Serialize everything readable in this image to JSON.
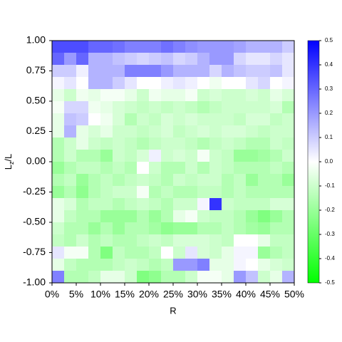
{
  "chart_data": {
    "type": "heatmap",
    "xlabel": "R",
    "ylabel": {
      "main": "L",
      "sub": "z",
      "rest": "/L"
    },
    "xlim": [
      0,
      50
    ],
    "ylim": [
      -1,
      1
    ],
    "xticks": [
      {
        "value": 0,
        "label": "0%"
      },
      {
        "value": 5,
        "label": "5%"
      },
      {
        "value": 10,
        "label": "10%"
      },
      {
        "value": 15,
        "label": "15%"
      },
      {
        "value": 20,
        "label": "20%"
      },
      {
        "value": 25,
        "label": "25%"
      },
      {
        "value": 30,
        "label": "30%"
      },
      {
        "value": 35,
        "label": "35%"
      },
      {
        "value": 40,
        "label": "40%"
      },
      {
        "value": 45,
        "label": "45%"
      },
      {
        "value": 50,
        "label": "50%"
      }
    ],
    "yticks": [
      {
        "value": 1,
        "label": "1.00"
      },
      {
        "value": 0.75,
        "label": "0.75"
      },
      {
        "value": 0.5,
        "label": "0.50"
      },
      {
        "value": 0.25,
        "label": "0.25"
      },
      {
        "value": 0,
        "label": "0.00"
      },
      {
        "value": -0.25,
        "label": "-0.25"
      },
      {
        "value": -0.5,
        "label": "-0.50"
      },
      {
        "value": -0.75,
        "label": "-0.75"
      },
      {
        "value": -1,
        "label": "-1.00"
      }
    ],
    "clim": [
      -0.5,
      0.5
    ],
    "cticks": [
      0.5,
      0.4,
      0.3,
      0.2,
      0.1,
      {
        "value": 0,
        "label": "0.0"
      },
      -0.1,
      -0.2,
      -0.3,
      -0.4,
      -0.5
    ],
    "colors": {
      "low": "#00ff00",
      "mid": "#ffffff",
      "high": "#0000ff"
    },
    "z": [
      [
        0.35,
        0.35,
        0.35,
        0.3,
        0.3,
        0.28,
        0.25,
        0.25,
        0.25,
        0.28,
        0.25,
        0.22,
        0.2,
        0.2,
        0.2,
        0.18,
        0.15,
        0.15,
        0.15,
        0.1
      ],
      [
        0.3,
        0.2,
        0.3,
        0.15,
        0.15,
        0.12,
        0.1,
        0.08,
        0.1,
        0.12,
        0.08,
        0.1,
        0.15,
        0.2,
        0.2,
        0.08,
        0.05,
        0.05,
        0.08,
        0.05
      ],
      [
        0.1,
        0.1,
        0.03,
        0.15,
        0.15,
        0.15,
        0.25,
        0.25,
        0.25,
        0.2,
        0.15,
        0.15,
        0.15,
        0.08,
        0.15,
        0.12,
        0.1,
        0.1,
        0.12,
        0.05
      ],
      [
        0.02,
        0.05,
        0,
        0.15,
        0.15,
        0.1,
        0.05,
        0,
        0,
        0.03,
        0.05,
        0.03,
        0,
        -0.03,
        0,
        0,
        0.05,
        0.08,
        0,
        0.02
      ],
      [
        -0.05,
        -0.1,
        -0.03,
        -0.05,
        -0.02,
        -0.02,
        -0.05,
        -0.1,
        -0.03,
        -0.05,
        -0.05,
        -0.02,
        -0.1,
        -0.08,
        -0.1,
        -0.1,
        -0.08,
        -0.1,
        -0.05,
        -0.08
      ],
      [
        -0.02,
        0.08,
        0.08,
        -0.03,
        -0.05,
        -0.08,
        -0.1,
        -0.12,
        -0.1,
        -0.12,
        -0.1,
        -0.12,
        -0.15,
        -0.12,
        -0.1,
        -0.1,
        -0.1,
        -0.1,
        -0.08,
        -0.15
      ],
      [
        -0.05,
        0.12,
        0.1,
        0,
        -0.03,
        -0.08,
        -0.15,
        -0.1,
        -0.12,
        -0.08,
        -0.1,
        -0.08,
        -0.1,
        -0.1,
        -0.1,
        -0.12,
        -0.08,
        -0.08,
        -0.12,
        -0.1
      ],
      [
        -0.05,
        0.15,
        -0.05,
        -0.08,
        -0.05,
        -0.1,
        -0.1,
        -0.12,
        -0.1,
        -0.08,
        -0.12,
        -0.1,
        -0.08,
        -0.1,
        -0.08,
        -0.08,
        -0.1,
        -0.12,
        -0.1,
        -0.1
      ],
      [
        -0.15,
        -0.1,
        -0.05,
        -0.1,
        -0.12,
        -0.1,
        -0.12,
        -0.15,
        -0.12,
        -0.1,
        -0.1,
        -0.12,
        -0.15,
        -0.12,
        -0.1,
        -0.12,
        -0.15,
        -0.15,
        -0.1,
        -0.12
      ],
      [
        -0.15,
        -0.1,
        -0.15,
        -0.15,
        -0.2,
        -0.1,
        -0.12,
        -0.08,
        0.03,
        -0.1,
        -0.08,
        -0.1,
        -0.02,
        -0.1,
        -0.12,
        -0.2,
        -0.2,
        -0.18,
        -0.15,
        -0.1
      ],
      [
        -0.2,
        -0.15,
        -0.12,
        -0.12,
        -0.15,
        -0.12,
        -0.15,
        0,
        -0.1,
        -0.15,
        -0.15,
        -0.1,
        -0.15,
        -0.1,
        -0.12,
        -0.15,
        -0.15,
        -0.15,
        -0.12,
        -0.15
      ],
      [
        -0.15,
        -0.12,
        -0.2,
        -0.15,
        -0.12,
        -0.15,
        -0.12,
        -0.1,
        -0.12,
        -0.15,
        -0.1,
        -0.12,
        -0.1,
        -0.1,
        -0.15,
        -0.12,
        -0.2,
        -0.15,
        -0.15,
        -0.2
      ],
      [
        -0.2,
        -0.15,
        -0.22,
        -0.15,
        -0.12,
        -0.1,
        -0.1,
        -0.02,
        -0.15,
        -0.12,
        -0.15,
        -0.15,
        -0.12,
        -0.12,
        -0.15,
        -0.12,
        -0.15,
        -0.15,
        -0.15,
        -0.15
      ],
      [
        -0.05,
        -0.08,
        -0.15,
        -0.12,
        -0.12,
        -0.15,
        -0.12,
        -0.1,
        -0.12,
        -0.15,
        -0.1,
        -0.1,
        0.02,
        0.4,
        -0.1,
        -0.12,
        -0.12,
        -0.12,
        -0.08,
        -0.08
      ],
      [
        -0.05,
        -0.12,
        -0.15,
        -0.15,
        -0.2,
        -0.2,
        -0.2,
        -0.15,
        -0.2,
        -0.15,
        -0.05,
        -0.02,
        -0.1,
        -0.12,
        -0.12,
        -0.15,
        -0.2,
        -0.25,
        -0.2,
        -0.15
      ],
      [
        -0.1,
        -0.15,
        -0.15,
        -0.2,
        -0.15,
        -0.2,
        -0.15,
        -0.15,
        -0.18,
        -0.22,
        -0.2,
        -0.2,
        -0.15,
        -0.15,
        -0.12,
        -0.15,
        -0.18,
        -0.2,
        -0.15,
        -0.15
      ],
      [
        -0.12,
        -0.15,
        -0.1,
        -0.15,
        -0.12,
        -0.15,
        -0.15,
        -0.12,
        -0.1,
        -0.12,
        -0.08,
        -0.08,
        -0.08,
        -0.1,
        -0.12,
        0,
        0,
        -0.05,
        -0.12,
        -0.12
      ],
      [
        0.05,
        -0.02,
        -0.02,
        -0.15,
        -0.25,
        -0.12,
        -0.15,
        -0.15,
        -0.12,
        0,
        -0.1,
        0.05,
        -0.08,
        -0.1,
        -0.05,
        0.02,
        0.02,
        -0.2,
        -0.15,
        -0.12
      ],
      [
        -0.05,
        -0.12,
        -0.15,
        -0.15,
        -0.15,
        -0.12,
        -0.1,
        -0.12,
        -0.15,
        -0.12,
        0.2,
        0.2,
        0.25,
        -0.05,
        -0.05,
        0.02,
        0,
        -0.05,
        -0.08,
        -0.1
      ],
      [
        0.25,
        -0.15,
        -0.15,
        -0.12,
        -0.05,
        -0.05,
        -0.1,
        -0.25,
        -0.22,
        -0.15,
        -0.15,
        -0.1,
        -0.02,
        -0.02,
        -0.05,
        0.2,
        0.12,
        -0.1,
        -0.05,
        0.15
      ]
    ]
  }
}
